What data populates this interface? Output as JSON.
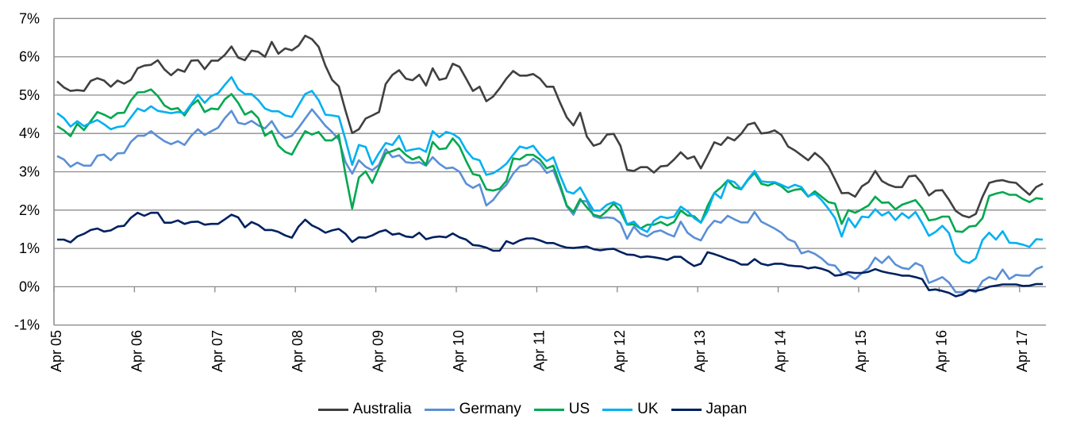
{
  "chart_data": {
    "type": "line",
    "title": "",
    "xlabel": "",
    "ylabel": "",
    "ylim": [
      -1,
      7
    ],
    "y_ticks": [
      "-1%",
      "0%",
      "1%",
      "2%",
      "3%",
      "4%",
      "5%",
      "6%",
      "7%"
    ],
    "y_tick_values": [
      -1,
      0,
      1,
      2,
      3,
      4,
      5,
      6,
      7
    ],
    "x_start": "Apr 05",
    "x_frequency": "monthly",
    "x_tick_labels": [
      "Apr 05",
      "Apr 06",
      "Apr 07",
      "Apr 08",
      "Apr 09",
      "Apr 10",
      "Apr 11",
      "Apr 12",
      "Apr 13",
      "Apr 14",
      "Apr 15",
      "Apr 16",
      "Apr 17"
    ],
    "grid": true,
    "legend_position": "bottom",
    "series": [
      {
        "name": "Australia",
        "color": "#404040",
        "values": [
          5.36,
          5.2,
          5.11,
          5.13,
          5.11,
          5.37,
          5.44,
          5.38,
          5.22,
          5.38,
          5.3,
          5.4,
          5.7,
          5.77,
          5.79,
          5.91,
          5.67,
          5.52,
          5.67,
          5.61,
          5.9,
          5.91,
          5.68,
          5.9,
          5.9,
          6.05,
          6.27,
          5.98,
          5.91,
          6.16,
          6.13,
          6.0,
          6.39,
          6.08,
          6.22,
          6.17,
          6.29,
          6.55,
          6.46,
          6.26,
          5.77,
          5.4,
          5.23,
          4.6,
          4.01,
          4.11,
          4.39,
          4.47,
          4.56,
          5.29,
          5.53,
          5.65,
          5.43,
          5.39,
          5.53,
          5.25,
          5.7,
          5.4,
          5.44,
          5.82,
          5.74,
          5.43,
          5.11,
          5.22,
          4.84,
          4.96,
          5.18,
          5.43,
          5.63,
          5.51,
          5.51,
          5.55,
          5.43,
          5.22,
          5.22,
          4.8,
          4.42,
          4.21,
          4.54,
          3.92,
          3.68,
          3.74,
          3.97,
          3.99,
          3.68,
          3.05,
          3.02,
          3.12,
          3.12,
          2.98,
          3.14,
          3.16,
          3.32,
          3.51,
          3.34,
          3.4,
          3.09,
          3.42,
          3.77,
          3.7,
          3.9,
          3.82,
          3.99,
          4.23,
          4.28,
          4.0,
          4.02,
          4.08,
          3.96,
          3.66,
          3.56,
          3.43,
          3.3,
          3.49,
          3.35,
          3.14,
          2.8,
          2.44,
          2.45,
          2.35,
          2.62,
          2.73,
          3.02,
          2.76,
          2.66,
          2.6,
          2.6,
          2.88,
          2.9,
          2.69,
          2.38,
          2.51,
          2.52,
          2.27,
          1.98,
          1.86,
          1.81,
          1.9,
          2.35,
          2.71,
          2.76,
          2.78,
          2.73,
          2.71,
          2.55,
          2.4,
          2.6,
          2.69
        ]
      },
      {
        "name": "Germany",
        "color": "#5b8fd6",
        "values": [
          3.41,
          3.32,
          3.13,
          3.24,
          3.16,
          3.16,
          3.42,
          3.45,
          3.3,
          3.48,
          3.49,
          3.78,
          3.94,
          3.94,
          4.06,
          3.92,
          3.8,
          3.72,
          3.8,
          3.7,
          3.94,
          4.11,
          3.96,
          4.06,
          4.15,
          4.4,
          4.59,
          4.28,
          4.24,
          4.33,
          4.21,
          4.13,
          4.32,
          4.04,
          3.88,
          3.94,
          4.15,
          4.39,
          4.63,
          4.42,
          4.2,
          4.04,
          3.84,
          3.25,
          2.95,
          3.3,
          3.13,
          3.04,
          3.18,
          3.59,
          3.38,
          3.43,
          3.25,
          3.23,
          3.25,
          3.16,
          3.38,
          3.21,
          3.09,
          3.11,
          3.0,
          2.69,
          2.58,
          2.67,
          2.12,
          2.26,
          2.49,
          2.66,
          2.95,
          3.14,
          3.18,
          3.34,
          3.21,
          2.97,
          3.04,
          2.59,
          2.1,
          1.88,
          2.24,
          2.23,
          1.84,
          1.79,
          1.81,
          1.79,
          1.66,
          1.25,
          1.57,
          1.38,
          1.31,
          1.43,
          1.47,
          1.38,
          1.31,
          1.7,
          1.41,
          1.28,
          1.21,
          1.52,
          1.72,
          1.67,
          1.85,
          1.76,
          1.68,
          1.68,
          1.95,
          1.7,
          1.61,
          1.52,
          1.41,
          1.24,
          1.17,
          0.87,
          0.93,
          0.86,
          0.74,
          0.58,
          0.55,
          0.34,
          0.31,
          0.2,
          0.36,
          0.48,
          0.76,
          0.62,
          0.79,
          0.58,
          0.49,
          0.46,
          0.62,
          0.54,
          0.1,
          0.17,
          0.25,
          0.11,
          -0.14,
          -0.14,
          -0.09,
          -0.14,
          0.15,
          0.25,
          0.19,
          0.45,
          0.2,
          0.31,
          0.29,
          0.29,
          0.46,
          0.53
        ]
      },
      {
        "name": "US",
        "color": "#00a84f",
        "values": [
          4.19,
          4.08,
          3.93,
          4.25,
          4.09,
          4.32,
          4.56,
          4.49,
          4.4,
          4.53,
          4.54,
          4.86,
          5.07,
          5.08,
          5.15,
          4.98,
          4.73,
          4.63,
          4.66,
          4.47,
          4.73,
          4.87,
          4.56,
          4.65,
          4.63,
          4.89,
          5.03,
          4.8,
          4.49,
          4.58,
          4.4,
          3.94,
          4.06,
          3.68,
          3.52,
          3.45,
          3.77,
          4.06,
          3.97,
          4.04,
          3.82,
          3.82,
          3.96,
          2.94,
          2.04,
          2.85,
          3.01,
          2.71,
          3.11,
          3.48,
          3.54,
          3.61,
          3.44,
          3.32,
          3.39,
          3.18,
          3.78,
          3.59,
          3.61,
          3.87,
          3.66,
          3.28,
          2.94,
          2.9,
          2.54,
          2.51,
          2.56,
          2.76,
          3.35,
          3.32,
          3.44,
          3.44,
          3.32,
          3.09,
          3.16,
          2.66,
          2.12,
          1.95,
          2.29,
          2.07,
          1.88,
          1.83,
          1.98,
          2.17,
          1.97,
          1.62,
          1.63,
          1.52,
          1.62,
          1.62,
          1.69,
          1.6,
          1.69,
          1.99,
          1.86,
          1.84,
          1.67,
          2.11,
          2.45,
          2.59,
          2.78,
          2.6,
          2.54,
          2.78,
          2.97,
          2.69,
          2.64,
          2.71,
          2.62,
          2.47,
          2.53,
          2.55,
          2.35,
          2.49,
          2.35,
          2.21,
          2.17,
          1.64,
          2.0,
          1.93,
          2.02,
          2.12,
          2.35,
          2.19,
          2.2,
          2.02,
          2.14,
          2.2,
          2.26,
          2.05,
          1.73,
          1.76,
          1.83,
          1.83,
          1.45,
          1.43,
          1.57,
          1.59,
          1.79,
          2.37,
          2.43,
          2.47,
          2.4,
          2.4,
          2.29,
          2.21,
          2.31,
          2.29
        ]
      },
      {
        "name": "UK",
        "color": "#00b0f0",
        "values": [
          4.53,
          4.4,
          4.18,
          4.32,
          4.19,
          4.28,
          4.35,
          4.24,
          4.11,
          4.17,
          4.19,
          4.42,
          4.65,
          4.58,
          4.71,
          4.59,
          4.56,
          4.53,
          4.56,
          4.53,
          4.77,
          5.01,
          4.8,
          4.98,
          5.05,
          5.27,
          5.47,
          5.16,
          5.03,
          5.03,
          4.87,
          4.65,
          4.58,
          4.58,
          4.47,
          4.43,
          4.73,
          5.03,
          5.11,
          4.87,
          4.49,
          4.47,
          4.44,
          3.84,
          3.18,
          3.7,
          3.65,
          3.19,
          3.49,
          3.75,
          3.7,
          3.94,
          3.54,
          3.58,
          3.61,
          3.52,
          4.06,
          3.9,
          4.04,
          3.99,
          3.87,
          3.56,
          3.35,
          3.3,
          2.92,
          2.96,
          3.07,
          3.21,
          3.44,
          3.66,
          3.61,
          3.68,
          3.45,
          3.28,
          3.38,
          2.9,
          2.49,
          2.43,
          2.59,
          2.28,
          1.99,
          1.99,
          2.14,
          2.21,
          2.12,
          1.63,
          1.7,
          1.52,
          1.43,
          1.72,
          1.83,
          1.79,
          1.83,
          2.09,
          1.97,
          1.79,
          1.67,
          1.97,
          2.45,
          2.31,
          2.78,
          2.73,
          2.55,
          2.8,
          3.02,
          2.75,
          2.73,
          2.73,
          2.66,
          2.58,
          2.66,
          2.6,
          2.36,
          2.43,
          2.26,
          2.04,
          1.79,
          1.31,
          1.79,
          1.55,
          1.83,
          1.81,
          2.02,
          1.86,
          1.95,
          1.74,
          1.92,
          1.79,
          1.95,
          1.66,
          1.33,
          1.43,
          1.59,
          1.4,
          0.86,
          0.67,
          0.62,
          0.74,
          1.22,
          1.41,
          1.23,
          1.45,
          1.15,
          1.14,
          1.1,
          1.04,
          1.24,
          1.23
        ]
      },
      {
        "name": "Japan",
        "color": "#002060",
        "values": [
          1.23,
          1.23,
          1.16,
          1.31,
          1.38,
          1.48,
          1.52,
          1.44,
          1.47,
          1.57,
          1.59,
          1.8,
          1.93,
          1.85,
          1.93,
          1.93,
          1.67,
          1.67,
          1.73,
          1.64,
          1.69,
          1.7,
          1.62,
          1.64,
          1.64,
          1.76,
          1.88,
          1.81,
          1.55,
          1.69,
          1.61,
          1.48,
          1.48,
          1.43,
          1.34,
          1.28,
          1.57,
          1.75,
          1.6,
          1.52,
          1.41,
          1.47,
          1.51,
          1.38,
          1.17,
          1.29,
          1.28,
          1.34,
          1.43,
          1.48,
          1.36,
          1.39,
          1.31,
          1.29,
          1.41,
          1.24,
          1.29,
          1.31,
          1.29,
          1.39,
          1.29,
          1.23,
          1.09,
          1.07,
          1.02,
          0.94,
          0.94,
          1.19,
          1.12,
          1.21,
          1.26,
          1.26,
          1.21,
          1.14,
          1.14,
          1.07,
          1.02,
          1.01,
          1.03,
          1.05,
          0.98,
          0.95,
          0.98,
          0.99,
          0.91,
          0.84,
          0.83,
          0.77,
          0.79,
          0.77,
          0.74,
          0.7,
          0.78,
          0.78,
          0.65,
          0.54,
          0.6,
          0.9,
          0.85,
          0.79,
          0.72,
          0.67,
          0.58,
          0.58,
          0.72,
          0.6,
          0.56,
          0.6,
          0.6,
          0.56,
          0.54,
          0.53,
          0.48,
          0.51,
          0.47,
          0.41,
          0.29,
          0.31,
          0.38,
          0.36,
          0.36,
          0.39,
          0.46,
          0.4,
          0.36,
          0.33,
          0.29,
          0.29,
          0.25,
          0.2,
          -0.09,
          -0.07,
          -0.11,
          -0.16,
          -0.25,
          -0.2,
          -0.09,
          -0.11,
          -0.07,
          0.0,
          0.03,
          0.06,
          0.06,
          0.06,
          0.02,
          0.03,
          0.07,
          0.07
        ]
      }
    ]
  }
}
